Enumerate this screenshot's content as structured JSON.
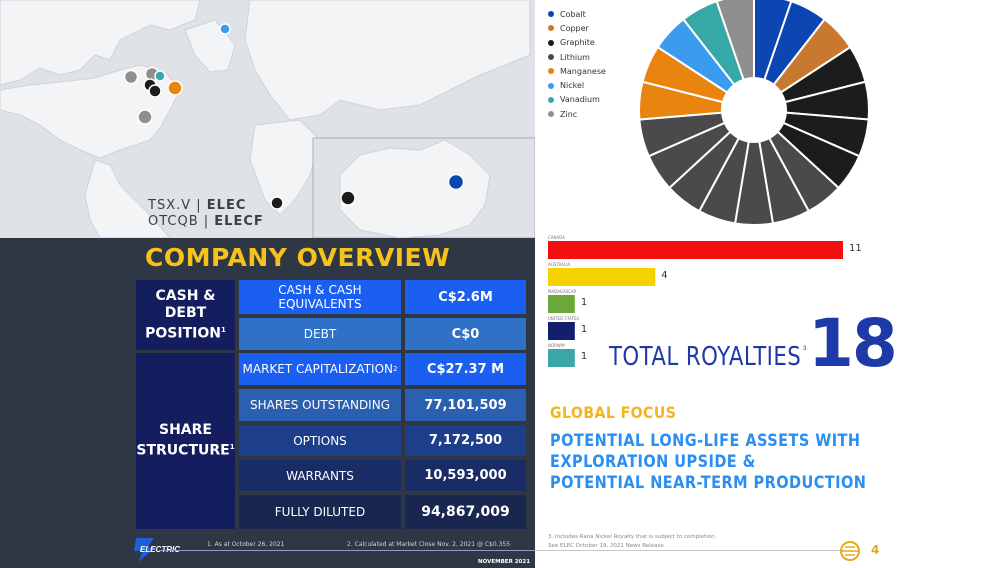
{
  "ticker": {
    "tsx_prefix": "TSX.V | ",
    "tsx_code": "ELEC",
    "otc_prefix": "OTCQB | ",
    "otc_code": "ELECF"
  },
  "overview": {
    "title": "COMPANY OVERVIEW",
    "cash_header_line1": "CASH &",
    "cash_header_line2": "DEBT",
    "cash_header_line3": "POSITION",
    "cash_header_sup": "1",
    "share_header_line1": "SHARE",
    "share_header_line2": "STRUCTURE",
    "share_header_sup": "1",
    "rows": [
      {
        "label": "CASH & CASH EQUIVALENTS",
        "sup": "",
        "value": "C$2.6M"
      },
      {
        "label": "DEBT",
        "sup": "",
        "value": "C$0"
      },
      {
        "label": "MARKET CAPITALIZATION",
        "sup": "2",
        "value": "C$27.37 M"
      },
      {
        "label": "SHARES OUTSTANDING",
        "sup": "",
        "value": "77,101,509"
      },
      {
        "label": "OPTIONS",
        "sup": "",
        "value": "7,172,500"
      },
      {
        "label": "WARRANTS",
        "sup": "",
        "value": "10,593,000"
      },
      {
        "label": "FULLY DILUTED",
        "sup": "",
        "value": "94,867,009"
      }
    ]
  },
  "footnotes": {
    "note1": "1.   As at October 26, 2021",
    "note2": "2.   Calculated at Market Close Nov. 2, 2021 @ C$0.355",
    "date": "NOVEMBER 2021",
    "logo": "ELECTRIC"
  },
  "legend": [
    {
      "name": "Cobalt",
      "color": "#0b46b3"
    },
    {
      "name": "Copper",
      "color": "#c8792f"
    },
    {
      "name": "Graphite",
      "color": "#1c1c1c"
    },
    {
      "name": "Lithium",
      "color": "#4a4a4a"
    },
    {
      "name": "Manganese",
      "color": "#e9840f"
    },
    {
      "name": "Nickel",
      "color": "#3a9bef"
    },
    {
      "name": "Vanadium",
      "color": "#36a9a7"
    },
    {
      "name": "Zinc",
      "color": "#8f8f8f"
    }
  ],
  "chart_data": [
    {
      "type": "pie",
      "donut": true,
      "segments_in_order": [
        "Cobalt",
        "Cobalt",
        "Copper",
        "Graphite",
        "Graphite",
        "Graphite",
        "Graphite",
        "Lithium",
        "Lithium",
        "Lithium",
        "Lithium",
        "Lithium",
        "Lithium",
        "Lithium",
        "Manganese",
        "Manganese",
        "Nickel",
        "Vanadium",
        "Zinc"
      ],
      "values": [
        1,
        1,
        1,
        1,
        1,
        1,
        1,
        1,
        1,
        1,
        1,
        1,
        1,
        1,
        1,
        1,
        1,
        1,
        1
      ]
    },
    {
      "type": "bar",
      "orientation": "horizontal",
      "categories": [
        "CANADA",
        "AUSTRALIA",
        "MADAGASCAR",
        "UNITED STATES",
        "NORWAY"
      ],
      "values": [
        11,
        4,
        1,
        1,
        1
      ],
      "colors": [
        "#f20f0f",
        "#f5d300",
        "#6ba83a",
        "#111f6e",
        "#3aa6a8"
      ]
    }
  ],
  "total": {
    "label": "TOTAL ROYALTIES",
    "sup": "3",
    "value": "18"
  },
  "focus": {
    "title": "GLOBAL FOCUS",
    "line1": "POTENTIAL LONG-LIFE ASSETS WITH",
    "line2": "EXPLORATION UPSIDE &",
    "line3": "POTENTIAL NEAR-TERM PRODUCTION"
  },
  "right_footnote": {
    "line1": "3.        Includes Rana Nickel Royalty that is subject to completion.",
    "line2": "           See ELEC October 19, 2021 News Release"
  },
  "page_number": "4",
  "colors": {
    "yellow": "#f7c31a",
    "navy": "#141e5f",
    "brand_blue": "#1d3aa8",
    "light_blue": "#2a8ef2",
    "gold": "#f3b51b"
  }
}
